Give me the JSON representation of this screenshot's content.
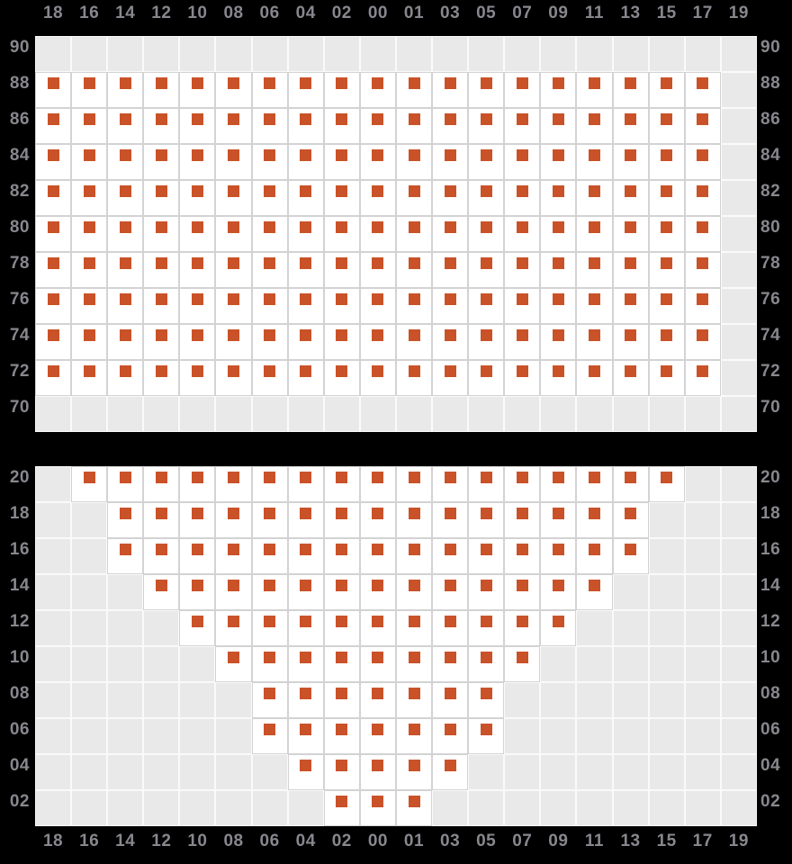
{
  "chart_data": {
    "type": "heatmap",
    "title": "",
    "columns": [
      "18",
      "16",
      "14",
      "12",
      "10",
      "08",
      "06",
      "04",
      "02",
      "00",
      "01",
      "03",
      "05",
      "07",
      "09",
      "11",
      "13",
      "15",
      "17",
      "19"
    ],
    "cell_states": {
      "0": "empty",
      "1": "marked"
    },
    "marker_shape": "square",
    "axis": {
      "top_labels": true,
      "bottom_labels": true,
      "left_labels": true,
      "right_labels": true,
      "grid": true,
      "legend": "none"
    },
    "panels": [
      {
        "name": "upper",
        "row_labels": [
          "90",
          "88",
          "86",
          "84",
          "82",
          "80",
          "78",
          "76",
          "74",
          "72",
          "70"
        ],
        "rows": [
          {
            "label": "90",
            "cells": "00000000000000000000"
          },
          {
            "label": "88",
            "cells": "11111111111111111110"
          },
          {
            "label": "86",
            "cells": "11111111111111111110"
          },
          {
            "label": "84",
            "cells": "11111111111111111110"
          },
          {
            "label": "82",
            "cells": "11111111111111111110"
          },
          {
            "label": "80",
            "cells": "11111111111111111110"
          },
          {
            "label": "78",
            "cells": "11111111111111111110"
          },
          {
            "label": "76",
            "cells": "11111111111111111110"
          },
          {
            "label": "74",
            "cells": "11111111111111111110"
          },
          {
            "label": "72",
            "cells": "11111111111111111110"
          },
          {
            "label": "70",
            "cells": "00000000000000000000"
          }
        ]
      },
      {
        "name": "lower",
        "row_labels": [
          "20",
          "18",
          "16",
          "14",
          "12",
          "10",
          "08",
          "06",
          "04",
          "02"
        ],
        "rows": [
          {
            "label": "20",
            "cells": "01111111111111111100"
          },
          {
            "label": "18",
            "cells": "00111111111111111000"
          },
          {
            "label": "16",
            "cells": "00111111111111111000"
          },
          {
            "label": "14",
            "cells": "00011111111111110000"
          },
          {
            "label": "12",
            "cells": "00001111111111100000"
          },
          {
            "label": "10",
            "cells": "00000111111111000000"
          },
          {
            "label": "08",
            "cells": "00000011111110000000"
          },
          {
            "label": "06",
            "cells": "00000011111110000000"
          },
          {
            "label": "04",
            "cells": "00000001111100000000"
          },
          {
            "label": "02",
            "cells": "00000000111000000000"
          }
        ]
      }
    ],
    "colors": {
      "background": "#000000",
      "cell_empty": "#e9e9ea",
      "cell_marked_bg": "#ffffff",
      "marker": "#ca5229",
      "label": "#87878e",
      "border_empty": "#fafafa",
      "border_marked": "#d3d3d5"
    }
  }
}
